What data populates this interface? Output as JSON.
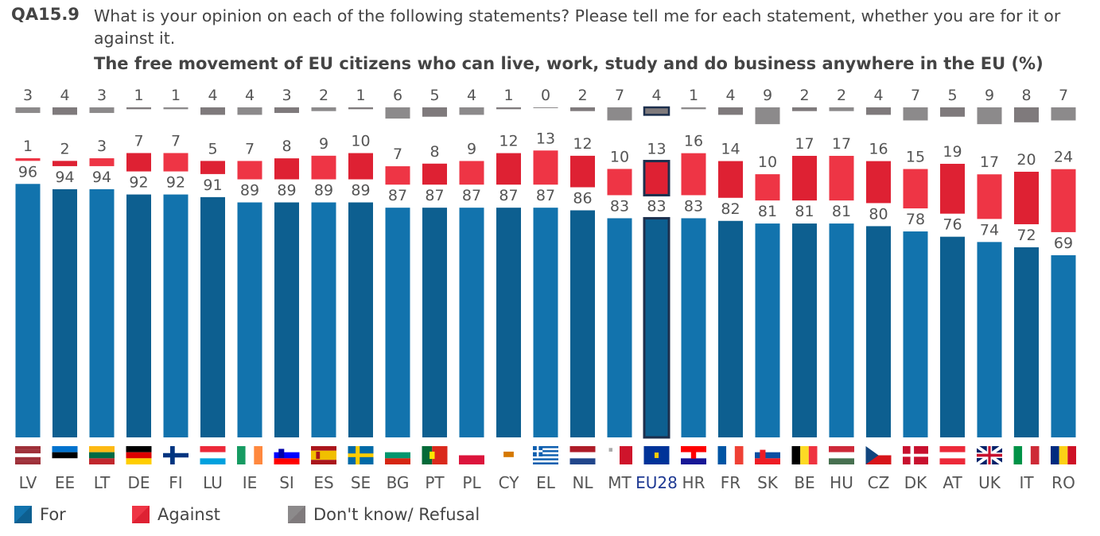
{
  "question": {
    "code": "QA15.9",
    "text": "What is your opinion on each of the following statements? Please tell me for each statement, whether you are for it or against it.",
    "subtitle": "The free movement of EU citizens who can live, work, study and do business anywhere in the EU  (%)"
  },
  "legend": {
    "for": "For",
    "against": "Against",
    "dont_know": "Don't know/ Refusal"
  },
  "colors": {
    "for": "#1273ad",
    "for_alt": "#0d5f90",
    "against": "#ee3545",
    "against_alt": "#de2133",
    "dont_know": "#8c8a8b",
    "dont_know_alt": "#7f7a7c",
    "highlight_border": "#1c2f4d",
    "label_text": "#555555",
    "highlight_label": "#1f3a93"
  },
  "chart_data": {
    "type": "bar",
    "title": "The free movement of EU citizens who can live, work, study and do business anywhere in the EU  (%)",
    "categories": [
      "LV",
      "EE",
      "LT",
      "DE",
      "FI",
      "LU",
      "IE",
      "SI",
      "ES",
      "SE",
      "BG",
      "PT",
      "PL",
      "CY",
      "EL",
      "NL",
      "MT",
      "EU28",
      "HR",
      "FR",
      "SK",
      "BE",
      "HU",
      "CZ",
      "DK",
      "AT",
      "UK",
      "IT",
      "RO"
    ],
    "highlight": "EU28",
    "legend_position": "bottom-left",
    "series": [
      {
        "name": "For",
        "values": [
          96,
          94,
          94,
          92,
          92,
          91,
          89,
          89,
          89,
          89,
          87,
          87,
          87,
          87,
          87,
          86,
          83,
          83,
          83,
          82,
          81,
          81,
          81,
          80,
          78,
          76,
          74,
          72,
          69
        ]
      },
      {
        "name": "Against",
        "values": [
          1,
          2,
          3,
          7,
          7,
          5,
          7,
          8,
          9,
          10,
          7,
          8,
          9,
          12,
          13,
          12,
          10,
          13,
          16,
          14,
          10,
          17,
          17,
          16,
          15,
          19,
          17,
          20,
          24
        ]
      },
      {
        "name": "Don't know/ Refusal",
        "values": [
          3,
          4,
          3,
          1,
          1,
          4,
          4,
          3,
          2,
          1,
          6,
          5,
          4,
          1,
          0,
          2,
          7,
          4,
          1,
          4,
          9,
          2,
          2,
          4,
          7,
          5,
          9,
          8,
          7
        ]
      }
    ],
    "flags": [
      {
        "code": "LV",
        "icon": "flag-latvia"
      },
      {
        "code": "EE",
        "icon": "flag-estonia"
      },
      {
        "code": "LT",
        "icon": "flag-lithuania"
      },
      {
        "code": "DE",
        "icon": "flag-germany"
      },
      {
        "code": "FI",
        "icon": "flag-finland"
      },
      {
        "code": "LU",
        "icon": "flag-luxembourg"
      },
      {
        "code": "IE",
        "icon": "flag-ireland"
      },
      {
        "code": "SI",
        "icon": "flag-slovenia"
      },
      {
        "code": "ES",
        "icon": "flag-spain"
      },
      {
        "code": "SE",
        "icon": "flag-sweden"
      },
      {
        "code": "BG",
        "icon": "flag-bulgaria"
      },
      {
        "code": "PT",
        "icon": "flag-portugal"
      },
      {
        "code": "PL",
        "icon": "flag-poland"
      },
      {
        "code": "CY",
        "icon": "flag-cyprus"
      },
      {
        "code": "EL",
        "icon": "flag-greece"
      },
      {
        "code": "NL",
        "icon": "flag-netherlands"
      },
      {
        "code": "MT",
        "icon": "flag-malta"
      },
      {
        "code": "EU28",
        "icon": "flag-eu"
      },
      {
        "code": "HR",
        "icon": "flag-croatia"
      },
      {
        "code": "FR",
        "icon": "flag-france"
      },
      {
        "code": "SK",
        "icon": "flag-slovakia"
      },
      {
        "code": "BE",
        "icon": "flag-belgium"
      },
      {
        "code": "HU",
        "icon": "flag-hungary"
      },
      {
        "code": "CZ",
        "icon": "flag-czechia"
      },
      {
        "code": "DK",
        "icon": "flag-denmark"
      },
      {
        "code": "AT",
        "icon": "flag-austria"
      },
      {
        "code": "UK",
        "icon": "flag-uk"
      },
      {
        "code": "IT",
        "icon": "flag-italy"
      },
      {
        "code": "RO",
        "icon": "flag-romania"
      }
    ]
  }
}
